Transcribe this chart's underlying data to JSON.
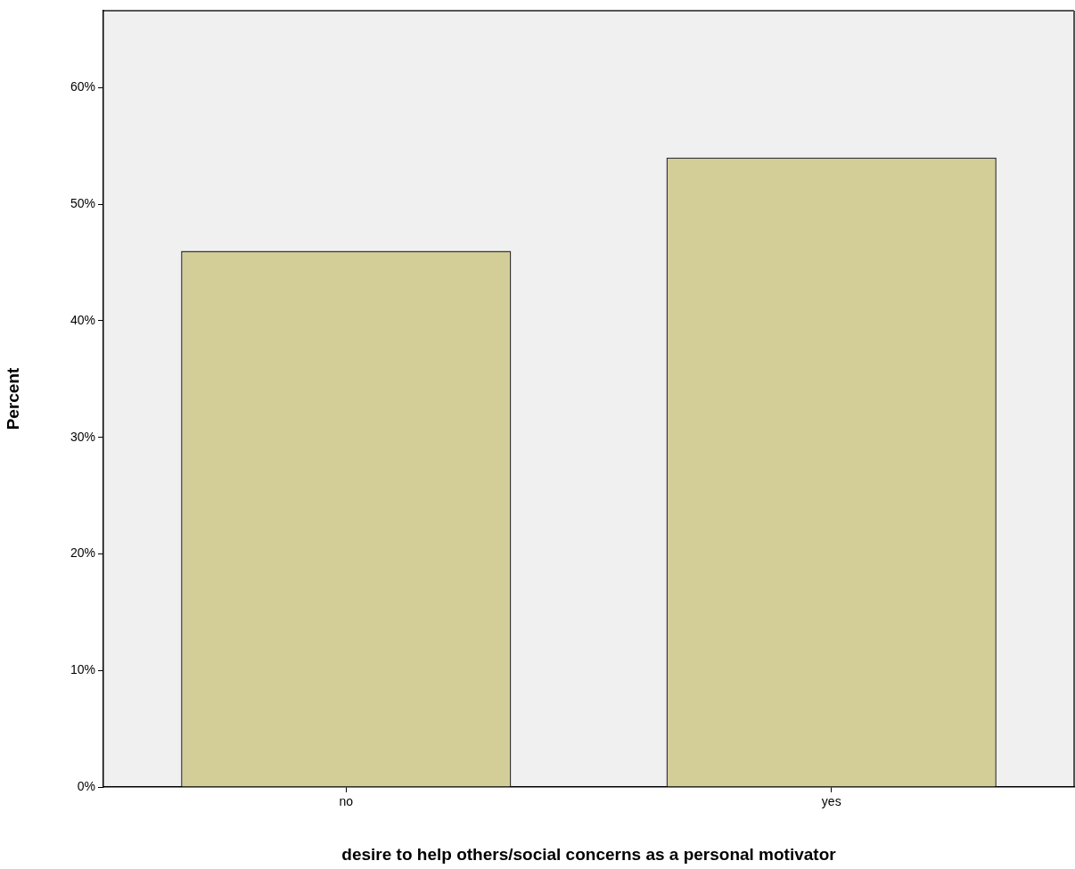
{
  "chart_data": {
    "type": "bar",
    "xlabel": "desire to help others/social concerns as a personal motivator",
    "ylabel": "Percent",
    "categories": [
      "no",
      "yes"
    ],
    "values": [
      46,
      54
    ],
    "color": "#d3ce97",
    "ylim": [
      0,
      66.6
    ],
    "yticks": [
      {
        "value": 0,
        "label": "0%"
      },
      {
        "value": 10,
        "label": "10%"
      },
      {
        "value": 20,
        "label": "20%"
      },
      {
        "value": 30,
        "label": "30%"
      },
      {
        "value": 40,
        "label": "40%"
      },
      {
        "value": 50,
        "label": "50%"
      },
      {
        "value": 60,
        "label": "60%"
      }
    ],
    "grid": false,
    "legend": false
  }
}
